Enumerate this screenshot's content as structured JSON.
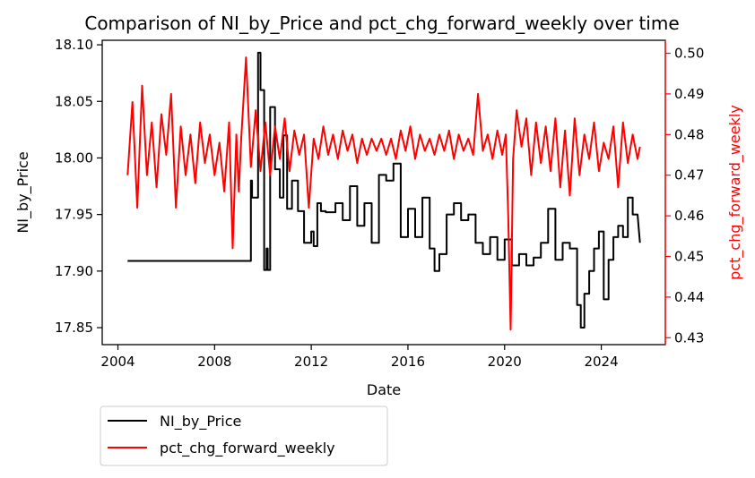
{
  "chart_data": {
    "type": "line",
    "title": "Comparison of NI_by_Price and pct_chg_forward_weekly over time",
    "xlabel": "Date",
    "ylabel_left": "NI_by_Price",
    "ylabel_right": "pct_chg_forward_weekly",
    "xlim": [
      2003.35,
      2026.65
    ],
    "ylim_left": [
      17.835,
      18.104
    ],
    "ylim_right": [
      0.4283,
      0.5032
    ],
    "x_ticks": [
      2004,
      2008,
      2012,
      2016,
      2020,
      2024
    ],
    "y_ticks_left": [
      17.85,
      17.9,
      17.95,
      18.0,
      18.05,
      18.1
    ],
    "y_ticks_right": [
      0.43,
      0.44,
      0.45,
      0.46,
      0.47,
      0.48,
      0.49,
      0.5
    ],
    "grid": false,
    "legend_position": "below-left",
    "series": [
      {
        "name": "NI_by_Price",
        "axis": "left",
        "color": "#000000",
        "x": [
          2004.4,
          2009.5,
          2009.5,
          2009.55,
          2009.55,
          2009.8,
          2009.8,
          2009.9,
          2009.9,
          2010.05,
          2010.05,
          2010.15,
          2010.15,
          2010.2,
          2010.2,
          2010.3,
          2010.3,
          2010.5,
          2010.5,
          2010.7,
          2010.7,
          2010.85,
          2010.85,
          2011.0,
          2011.0,
          2011.2,
          2011.2,
          2011.45,
          2011.45,
          2011.7,
          2011.7,
          2012.0,
          2012.0,
          2012.1,
          2012.1,
          2012.25,
          2012.25,
          2012.4,
          2012.4,
          2012.6,
          2012.6,
          2013.0,
          2013.0,
          2013.3,
          2013.3,
          2013.6,
          2013.6,
          2013.9,
          2013.9,
          2014.2,
          2014.2,
          2014.5,
          2014.5,
          2014.8,
          2014.8,
          2015.1,
          2015.1,
          2015.4,
          2015.4,
          2015.7,
          2015.7,
          2016.0,
          2016.0,
          2016.3,
          2016.3,
          2016.6,
          2016.6,
          2016.9,
          2016.9,
          2017.1,
          2017.1,
          2017.3,
          2017.3,
          2017.6,
          2017.6,
          2017.9,
          2017.9,
          2018.2,
          2018.2,
          2018.5,
          2018.5,
          2018.8,
          2018.8,
          2019.1,
          2019.1,
          2019.4,
          2019.4,
          2019.7,
          2019.7,
          2020.0,
          2020.0,
          2020.3,
          2020.3,
          2020.6,
          2020.6,
          2020.9,
          2020.9,
          2021.2,
          2021.2,
          2021.5,
          2021.5,
          2021.8,
          2021.8,
          2022.1,
          2022.1,
          2022.4,
          2022.4,
          2022.7,
          2022.7,
          2023.0,
          2023.0,
          2023.15,
          2023.15,
          2023.3,
          2023.3,
          2023.5,
          2023.5,
          2023.7,
          2023.7,
          2023.9,
          2023.9,
          2024.1,
          2024.1,
          2024.3,
          2024.3,
          2024.5,
          2024.5,
          2024.7,
          2024.7,
          2024.9,
          2024.9,
          2025.1,
          2025.1,
          2025.3,
          2025.3,
          2025.5,
          2025.6
        ],
        "y": [
          17.909,
          17.909,
          17.98,
          17.98,
          17.965,
          17.965,
          18.093,
          18.093,
          18.06,
          18.06,
          17.901,
          17.901,
          17.92,
          17.92,
          17.901,
          17.901,
          18.045,
          18.045,
          17.99,
          17.99,
          17.965,
          17.965,
          18.02,
          18.02,
          17.955,
          17.955,
          17.98,
          17.98,
          17.953,
          17.953,
          17.925,
          17.925,
          17.935,
          17.935,
          17.922,
          17.922,
          17.96,
          17.96,
          17.953,
          17.953,
          17.952,
          17.952,
          17.96,
          17.96,
          17.945,
          17.945,
          17.975,
          17.975,
          17.94,
          17.94,
          17.96,
          17.96,
          17.925,
          17.925,
          17.985,
          17.985,
          17.98,
          17.98,
          17.995,
          17.995,
          17.93,
          17.93,
          17.955,
          17.955,
          17.93,
          17.93,
          17.965,
          17.965,
          17.92,
          17.92,
          17.9,
          17.9,
          17.915,
          17.915,
          17.95,
          17.95,
          17.96,
          17.96,
          17.945,
          17.945,
          17.95,
          17.95,
          17.925,
          17.925,
          17.915,
          17.915,
          17.93,
          17.93,
          17.91,
          17.91,
          17.928,
          17.928,
          17.905,
          17.905,
          17.915,
          17.915,
          17.905,
          17.905,
          17.912,
          17.912,
          17.925,
          17.925,
          17.955,
          17.955,
          17.91,
          17.91,
          17.925,
          17.925,
          17.92,
          17.92,
          17.87,
          17.87,
          17.85,
          17.85,
          17.88,
          17.88,
          17.9,
          17.9,
          17.92,
          17.92,
          17.935,
          17.935,
          17.875,
          17.875,
          17.91,
          17.91,
          17.93,
          17.93,
          17.94,
          17.94,
          17.93,
          17.93,
          17.965,
          17.965,
          17.95,
          17.95,
          17.925
        ]
      },
      {
        "name": "pct_chg_forward_weekly",
        "axis": "right",
        "color": "#ff0000",
        "x": [
          2004.4,
          2004.6,
          2004.8,
          2005.0,
          2005.2,
          2005.4,
          2005.6,
          2005.8,
          2006.0,
          2006.2,
          2006.4,
          2006.6,
          2006.8,
          2007.0,
          2007.2,
          2007.4,
          2007.6,
          2007.8,
          2008.0,
          2008.2,
          2008.4,
          2008.6,
          2008.75,
          2008.9,
          2009.0,
          2009.1,
          2009.3,
          2009.5,
          2009.7,
          2009.9,
          2010.1,
          2010.3,
          2010.5,
          2010.7,
          2010.9,
          2011.1,
          2011.3,
          2011.5,
          2011.7,
          2011.9,
          2012.1,
          2012.3,
          2012.5,
          2012.7,
          2012.9,
          2013.1,
          2013.3,
          2013.5,
          2013.7,
          2013.9,
          2014.1,
          2014.3,
          2014.5,
          2014.7,
          2014.9,
          2015.1,
          2015.3,
          2015.5,
          2015.7,
          2015.9,
          2016.1,
          2016.3,
          2016.5,
          2016.7,
          2016.9,
          2017.1,
          2017.3,
          2017.5,
          2017.7,
          2017.9,
          2018.1,
          2018.3,
          2018.5,
          2018.7,
          2018.9,
          2019.1,
          2019.3,
          2019.5,
          2019.7,
          2019.9,
          2020.05,
          2020.15,
          2020.25,
          2020.35,
          2020.5,
          2020.7,
          2020.9,
          2021.1,
          2021.3,
          2021.5,
          2021.7,
          2021.9,
          2022.1,
          2022.3,
          2022.5,
          2022.7,
          2022.9,
          2023.1,
          2023.3,
          2023.5,
          2023.7,
          2023.9,
          2024.1,
          2024.3,
          2024.5,
          2024.7,
          2024.9,
          2025.1,
          2025.3,
          2025.5,
          2025.6
        ],
        "y": [
          0.47,
          0.488,
          0.462,
          0.492,
          0.47,
          0.483,
          0.467,
          0.485,
          0.475,
          0.49,
          0.462,
          0.482,
          0.47,
          0.48,
          0.468,
          0.483,
          0.473,
          0.48,
          0.47,
          0.478,
          0.466,
          0.483,
          0.452,
          0.48,
          0.466,
          0.479,
          0.499,
          0.472,
          0.486,
          0.471,
          0.483,
          0.47,
          0.482,
          0.474,
          0.484,
          0.471,
          0.481,
          0.475,
          0.48,
          0.462,
          0.479,
          0.474,
          0.482,
          0.475,
          0.48,
          0.474,
          0.481,
          0.476,
          0.48,
          0.473,
          0.479,
          0.475,
          0.479,
          0.476,
          0.479,
          0.475,
          0.479,
          0.474,
          0.481,
          0.476,
          0.482,
          0.474,
          0.48,
          0.476,
          0.479,
          0.475,
          0.48,
          0.476,
          0.481,
          0.474,
          0.48,
          0.476,
          0.479,
          0.475,
          0.49,
          0.476,
          0.48,
          0.474,
          0.481,
          0.475,
          0.48,
          0.46,
          0.432,
          0.474,
          0.486,
          0.477,
          0.484,
          0.47,
          0.483,
          0.473,
          0.482,
          0.471,
          0.484,
          0.467,
          0.481,
          0.465,
          0.484,
          0.47,
          0.48,
          0.474,
          0.483,
          0.471,
          0.478,
          0.474,
          0.482,
          0.467,
          0.483,
          0.473,
          0.48,
          0.474,
          0.477
        ]
      }
    ]
  }
}
